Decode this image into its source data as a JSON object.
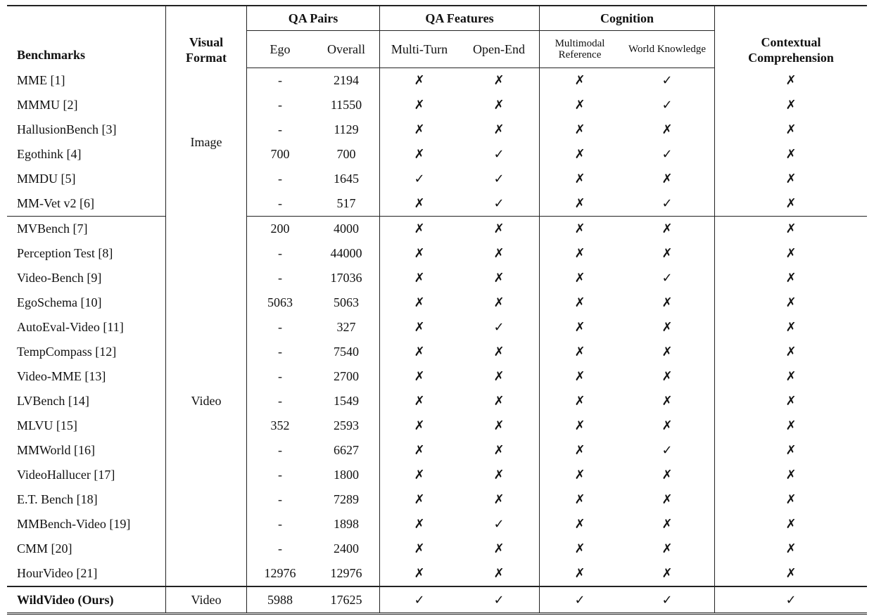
{
  "headers": {
    "benchmarks": "Benchmarks",
    "visual_format": "Visual Format",
    "qa_pairs": "QA Pairs",
    "ego": "Ego",
    "overall": "Overall",
    "qa_features": "QA Features",
    "multi_turn": "Multi-Turn",
    "open_end": "Open-End",
    "cognition": "Cognition",
    "multimodal_reference": "Multimodal Reference",
    "world_knowledge": "World Knowledge",
    "contextual_comprehension": "Contextual Comprehension"
  },
  "symbols": {
    "yes": "✓",
    "no": "✗"
  },
  "groups": [
    {
      "format": "Image",
      "rows": [
        {
          "name": "MME [1]",
          "ego": "-",
          "overall": "2194",
          "marks": [
            0,
            0,
            0,
            1,
            0
          ]
        },
        {
          "name": "MMMU [2]",
          "ego": "-",
          "overall": "11550",
          "marks": [
            0,
            0,
            0,
            1,
            0
          ]
        },
        {
          "name": "HallusionBench [3]",
          "ego": "-",
          "overall": "1129",
          "marks": [
            0,
            0,
            0,
            0,
            0
          ]
        },
        {
          "name": "Egothink [4]",
          "ego": "700",
          "overall": "700",
          "marks": [
            0,
            1,
            0,
            1,
            0
          ]
        },
        {
          "name": "MMDU [5]",
          "ego": "-",
          "overall": "1645",
          "marks": [
            1,
            1,
            0,
            0,
            0
          ]
        },
        {
          "name": "MM-Vet v2 [6]",
          "ego": "-",
          "overall": "517",
          "marks": [
            0,
            1,
            0,
            1,
            0
          ]
        }
      ]
    },
    {
      "format": "Video",
      "rows": [
        {
          "name": "MVBench [7]",
          "ego": "200",
          "overall": "4000",
          "marks": [
            0,
            0,
            0,
            0,
            0
          ]
        },
        {
          "name": "Perception Test [8]",
          "ego": "-",
          "overall": "44000",
          "marks": [
            0,
            0,
            0,
            0,
            0
          ]
        },
        {
          "name": "Video-Bench [9]",
          "ego": "-",
          "overall": "17036",
          "marks": [
            0,
            0,
            0,
            1,
            0
          ]
        },
        {
          "name": "EgoSchema [10]",
          "ego": "5063",
          "overall": "5063",
          "marks": [
            0,
            0,
            0,
            0,
            0
          ]
        },
        {
          "name": "AutoEval-Video [11]",
          "ego": "-",
          "overall": "327",
          "marks": [
            0,
            1,
            0,
            0,
            0
          ]
        },
        {
          "name": "TempCompass [12]",
          "ego": "-",
          "overall": "7540",
          "marks": [
            0,
            0,
            0,
            0,
            0
          ]
        },
        {
          "name": "Video-MME [13]",
          "ego": "-",
          "overall": "2700",
          "marks": [
            0,
            0,
            0,
            0,
            0
          ]
        },
        {
          "name": "LVBench [14]",
          "ego": "-",
          "overall": "1549",
          "marks": [
            0,
            0,
            0,
            0,
            0
          ]
        },
        {
          "name": "MLVU [15]",
          "ego": "352",
          "overall": "2593",
          "marks": [
            0,
            0,
            0,
            0,
            0
          ]
        },
        {
          "name": "MMWorld [16]",
          "ego": "-",
          "overall": "6627",
          "marks": [
            0,
            0,
            0,
            1,
            0
          ]
        },
        {
          "name": "VideoHallucer [17]",
          "ego": "-",
          "overall": "1800",
          "marks": [
            0,
            0,
            0,
            0,
            0
          ]
        },
        {
          "name": "E.T. Bench [18]",
          "ego": "-",
          "overall": "7289",
          "marks": [
            0,
            0,
            0,
            0,
            0
          ]
        },
        {
          "name": "MMBench-Video [19]",
          "ego": "-",
          "overall": "1898",
          "marks": [
            0,
            1,
            0,
            0,
            0
          ]
        },
        {
          "name": "CMM [20]",
          "ego": "-",
          "overall": "2400",
          "marks": [
            0,
            0,
            0,
            0,
            0
          ]
        },
        {
          "name": "HourVideo [21]",
          "ego": "12976",
          "overall": "12976",
          "marks": [
            0,
            0,
            0,
            0,
            0
          ]
        }
      ]
    }
  ],
  "ours": {
    "name": "WildVideo (Ours)",
    "format": "Video",
    "ego": "5988",
    "overall": "17625",
    "marks": [
      1,
      1,
      1,
      1,
      1
    ]
  }
}
